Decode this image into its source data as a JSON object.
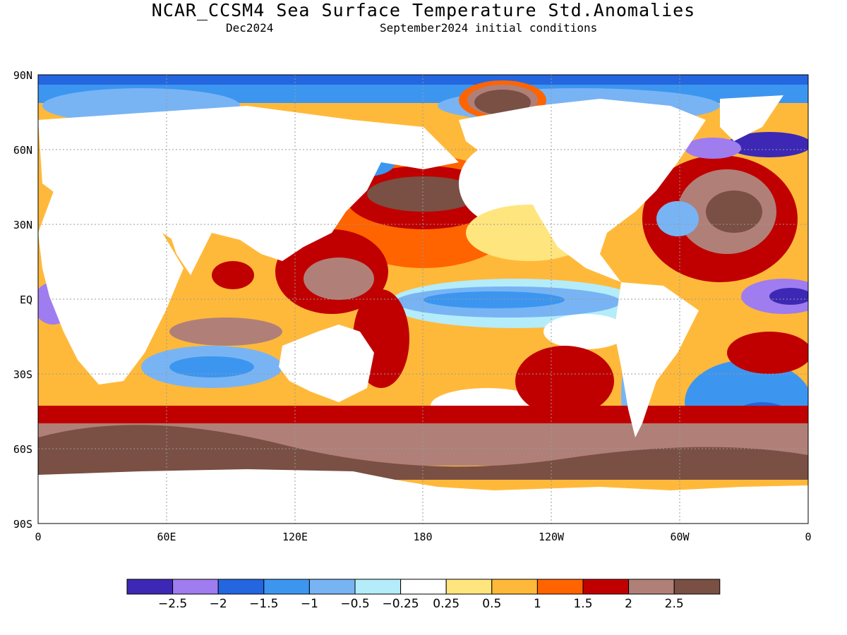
{
  "title": "NCAR_CCSM4 Sea Surface Temperature Std.Anomalies",
  "subtitle_left": "Dec2024",
  "subtitle_right": "September2024 initial conditions",
  "lat_ticks": [
    "90N",
    "60N",
    "30N",
    "EQ",
    "30S",
    "60S",
    "90S"
  ],
  "lon_ticks": [
    "0",
    "60E",
    "120E",
    "180",
    "120W",
    "60W",
    "0"
  ],
  "colorbar": {
    "colors": [
      "#3c28b4",
      "#9f7cf0",
      "#2466e0",
      "#3c96f0",
      "#78b4f4",
      "#b4ecfa",
      "#ffffff",
      "#ffe57e",
      "#ffb93a",
      "#ff6400",
      "#c00000",
      "#b08078",
      "#7a4f44"
    ],
    "labels": [
      "−2.5",
      "−2",
      "−1.5",
      "−1",
      "−0.5",
      "−0.25",
      "0.25",
      "0.5",
      "1",
      "1.5",
      "2",
      "2.5"
    ]
  }
}
